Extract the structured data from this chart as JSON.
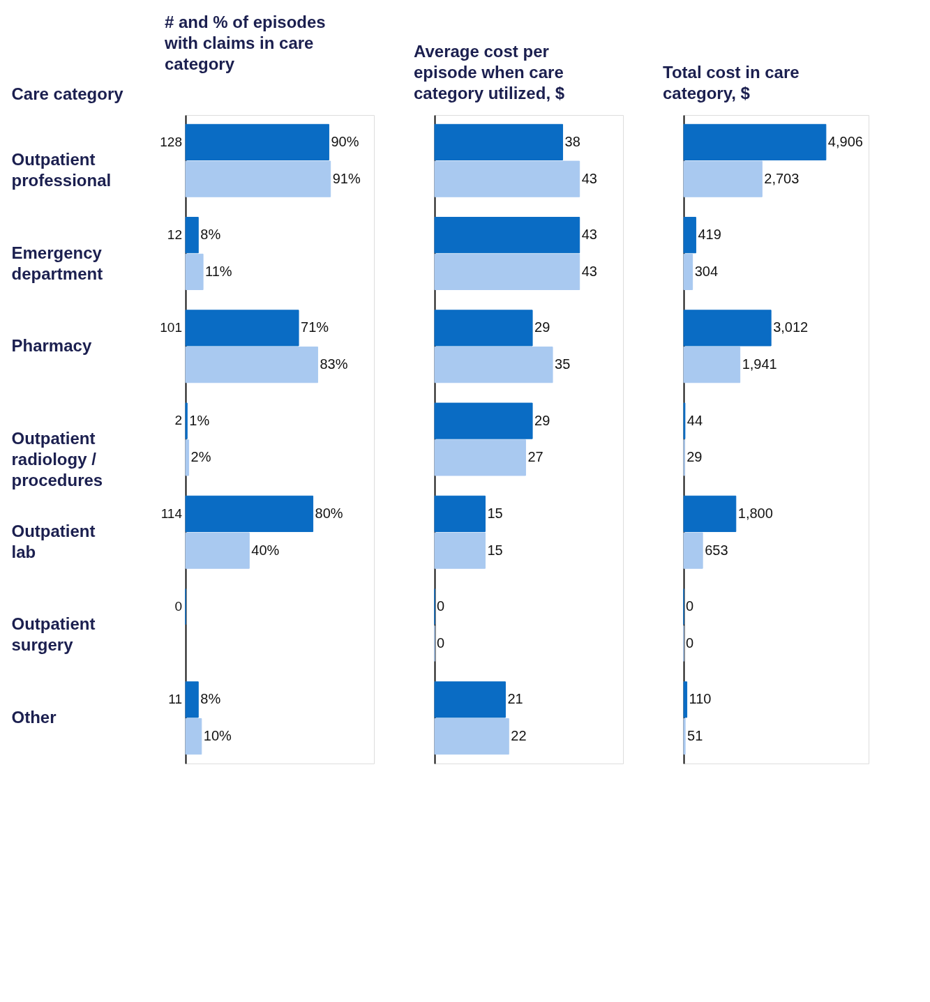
{
  "chart_data": [
    {
      "type": "bar",
      "orientation": "horizontal",
      "title": "# and % of episodes with claims in care category",
      "ylabel": "Care category",
      "tick_labels": "y",
      "categories": [
        "Outpatient professional",
        "Emergency department",
        "Pharmacy",
        "Outpatient radiology / procedures",
        "Outpatient lab",
        "Outpatient surgery",
        "Other"
      ],
      "series": [
        {
          "color": "#0a6cc4",
          "values": [
            90,
            8,
            71,
            1,
            80,
            0,
            8
          ],
          "value_labels": [
            "90%",
            "8%",
            "71%",
            "1%",
            "80%",
            null,
            "8%"
          ]
        },
        {
          "color": "#a9c9f0",
          "values": [
            91,
            11,
            83,
            2,
            40,
            null,
            10
          ],
          "value_labels": [
            "91%",
            "11%",
            "83%",
            "2%",
            "40%",
            null,
            "10%"
          ]
        }
      ],
      "annotations": [
        "128",
        "12",
        "101",
        "2",
        "114",
        "0",
        "11"
      ]
    },
    {
      "type": "bar",
      "orientation": "horizontal",
      "title": "Average cost per episode when care category utilized, $",
      "tick_labels": false,
      "data_labels": true,
      "categories": [
        "Outpatient professional",
        "Emergency department",
        "Pharmacy",
        "Outpatient radiology / procedures",
        "Outpatient lab",
        "Outpatient surgery",
        "Other"
      ],
      "series": [
        {
          "color": "#0a6cc4",
          "values": [
            38,
            43,
            29,
            29,
            15,
            0,
            21
          ]
        },
        {
          "color": "#a9c9f0",
          "values": [
            43,
            43,
            35,
            27,
            15,
            0,
            22
          ]
        }
      ]
    },
    {
      "type": "bar",
      "orientation": "horizontal",
      "title": "Total cost in care category, $",
      "tick_labels": false,
      "categories": [
        "Outpatient professional",
        "Emergency department",
        "Pharmacy",
        "Outpatient radiology / procedures",
        "Outpatient lab",
        "Outpatient surgery",
        "Other"
      ],
      "series": [
        {
          "color": "#0a6cc4",
          "values": [
            4906,
            419,
            3012,
            44,
            1800,
            0,
            110
          ],
          "value_labels": [
            "4,906",
            "419",
            "3,012",
            "44",
            "1,800",
            "0",
            "110"
          ]
        },
        {
          "color": "#a9c9f0",
          "values": [
            2703,
            304,
            1941,
            29,
            653,
            0,
            51
          ],
          "value_labels": [
            "2,703",
            "304",
            "1,941",
            "29",
            "653",
            "0",
            "51"
          ]
        }
      ]
    }
  ]
}
